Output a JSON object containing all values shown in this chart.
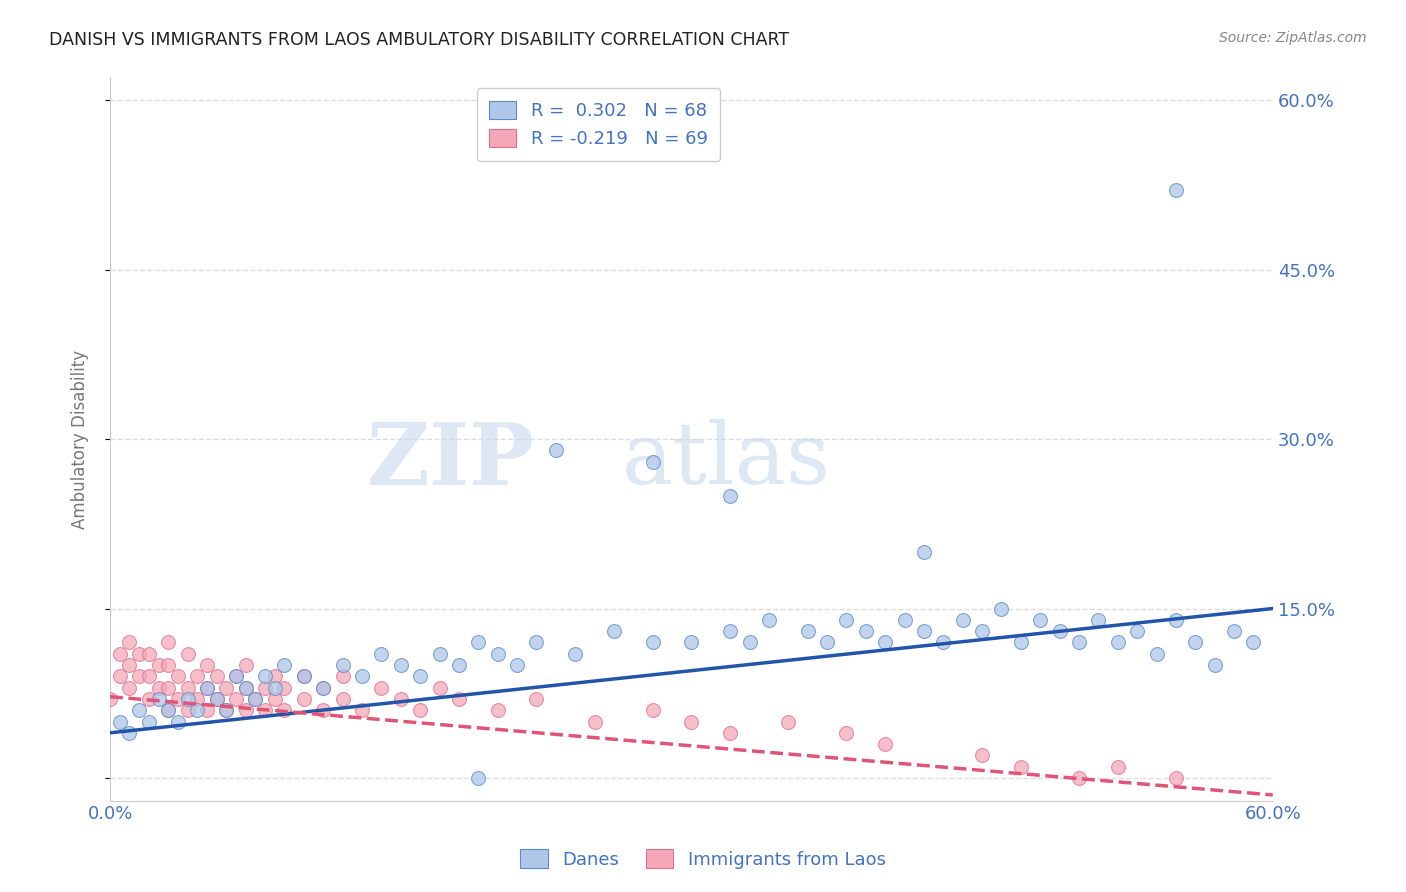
{
  "title": "DANISH VS IMMIGRANTS FROM LAOS AMBULATORY DISABILITY CORRELATION CHART",
  "source": "Source: ZipAtlas.com",
  "ylabel": "Ambulatory Disability",
  "xlim": [
    0,
    0.6
  ],
  "ylim": [
    -0.02,
    0.62
  ],
  "yticks": [
    0.0,
    0.15,
    0.3,
    0.45,
    0.6
  ],
  "ytick_labels": [
    "",
    "15.0%",
    "30.0%",
    "45.0%",
    "60.0%"
  ],
  "xticks": [
    0.0,
    0.1,
    0.2,
    0.3,
    0.4,
    0.5,
    0.6
  ],
  "xtick_labels": [
    "0.0%",
    "",
    "",
    "",
    "",
    "",
    "60.0%"
  ],
  "series1_name": "Danes",
  "series1_color": "#aec6e8",
  "series1_edge_color": "#5b8cc8",
  "series1_line_color": "#2255aa",
  "series1_R": 0.302,
  "series1_N": 68,
  "series2_name": "Immigrants from Laos",
  "series2_color": "#f4a8b8",
  "series2_edge_color": "#e07090",
  "series2_line_color": "#e05575",
  "series2_R": -0.219,
  "series2_N": 69,
  "watermark": "ZIPatlas",
  "background_color": "#ffffff",
  "grid_color": "#dddddd",
  "title_color": "#222222",
  "axis_label_color": "#4472c4",
  "legend_text_color": "#4472c4",
  "danes_x": [
    0.005,
    0.01,
    0.015,
    0.02,
    0.025,
    0.03,
    0.035,
    0.04,
    0.045,
    0.05,
    0.055,
    0.06,
    0.065,
    0.07,
    0.075,
    0.08,
    0.085,
    0.09,
    0.1,
    0.11,
    0.12,
    0.13,
    0.14,
    0.15,
    0.16,
    0.17,
    0.18,
    0.19,
    0.2,
    0.21,
    0.22,
    0.24,
    0.26,
    0.28,
    0.3,
    0.32,
    0.33,
    0.34,
    0.36,
    0.37,
    0.38,
    0.39,
    0.4,
    0.41,
    0.42,
    0.43,
    0.44,
    0.45,
    0.46,
    0.47,
    0.48,
    0.49,
    0.5,
    0.51,
    0.52,
    0.53,
    0.54,
    0.55,
    0.56,
    0.57,
    0.58,
    0.59,
    0.42,
    0.32,
    0.28,
    0.23,
    0.19,
    0.55
  ],
  "danes_y": [
    0.05,
    0.04,
    0.06,
    0.05,
    0.07,
    0.06,
    0.05,
    0.07,
    0.06,
    0.08,
    0.07,
    0.06,
    0.09,
    0.08,
    0.07,
    0.09,
    0.08,
    0.1,
    0.09,
    0.08,
    0.1,
    0.09,
    0.11,
    0.1,
    0.09,
    0.11,
    0.1,
    0.12,
    0.11,
    0.1,
    0.12,
    0.11,
    0.13,
    0.12,
    0.12,
    0.13,
    0.12,
    0.14,
    0.13,
    0.12,
    0.14,
    0.13,
    0.12,
    0.14,
    0.13,
    0.12,
    0.14,
    0.13,
    0.15,
    0.12,
    0.14,
    0.13,
    0.12,
    0.14,
    0.12,
    0.13,
    0.11,
    0.14,
    0.12,
    0.1,
    0.13,
    0.12,
    0.2,
    0.25,
    0.28,
    0.29,
    0.0,
    0.52
  ],
  "laos_x": [
    0.0,
    0.005,
    0.005,
    0.01,
    0.01,
    0.01,
    0.015,
    0.015,
    0.02,
    0.02,
    0.02,
    0.025,
    0.025,
    0.03,
    0.03,
    0.03,
    0.03,
    0.035,
    0.035,
    0.04,
    0.04,
    0.04,
    0.045,
    0.045,
    0.05,
    0.05,
    0.05,
    0.055,
    0.055,
    0.06,
    0.06,
    0.065,
    0.065,
    0.07,
    0.07,
    0.07,
    0.075,
    0.08,
    0.08,
    0.085,
    0.085,
    0.09,
    0.09,
    0.1,
    0.1,
    0.11,
    0.11,
    0.12,
    0.12,
    0.13,
    0.14,
    0.15,
    0.16,
    0.17,
    0.18,
    0.2,
    0.22,
    0.25,
    0.28,
    0.3,
    0.32,
    0.35,
    0.38,
    0.4,
    0.45,
    0.47,
    0.5,
    0.52,
    0.55
  ],
  "laos_y": [
    0.07,
    0.09,
    0.11,
    0.08,
    0.1,
    0.12,
    0.09,
    0.11,
    0.07,
    0.09,
    0.11,
    0.08,
    0.1,
    0.06,
    0.08,
    0.1,
    0.12,
    0.07,
    0.09,
    0.06,
    0.08,
    0.11,
    0.07,
    0.09,
    0.06,
    0.08,
    0.1,
    0.07,
    0.09,
    0.06,
    0.08,
    0.07,
    0.09,
    0.06,
    0.08,
    0.1,
    0.07,
    0.06,
    0.08,
    0.07,
    0.09,
    0.06,
    0.08,
    0.07,
    0.09,
    0.06,
    0.08,
    0.07,
    0.09,
    0.06,
    0.08,
    0.07,
    0.06,
    0.08,
    0.07,
    0.06,
    0.07,
    0.05,
    0.06,
    0.05,
    0.04,
    0.05,
    0.04,
    0.03,
    0.02,
    0.01,
    0.0,
    0.01,
    0.0
  ],
  "danes_line_x0": 0.0,
  "danes_line_y0": 0.04,
  "danes_line_x1": 0.6,
  "danes_line_y1": 0.15,
  "laos_line_x0": 0.0,
  "laos_line_y0": 0.072,
  "laos_line_x1": 0.6,
  "laos_line_y1": -0.015
}
